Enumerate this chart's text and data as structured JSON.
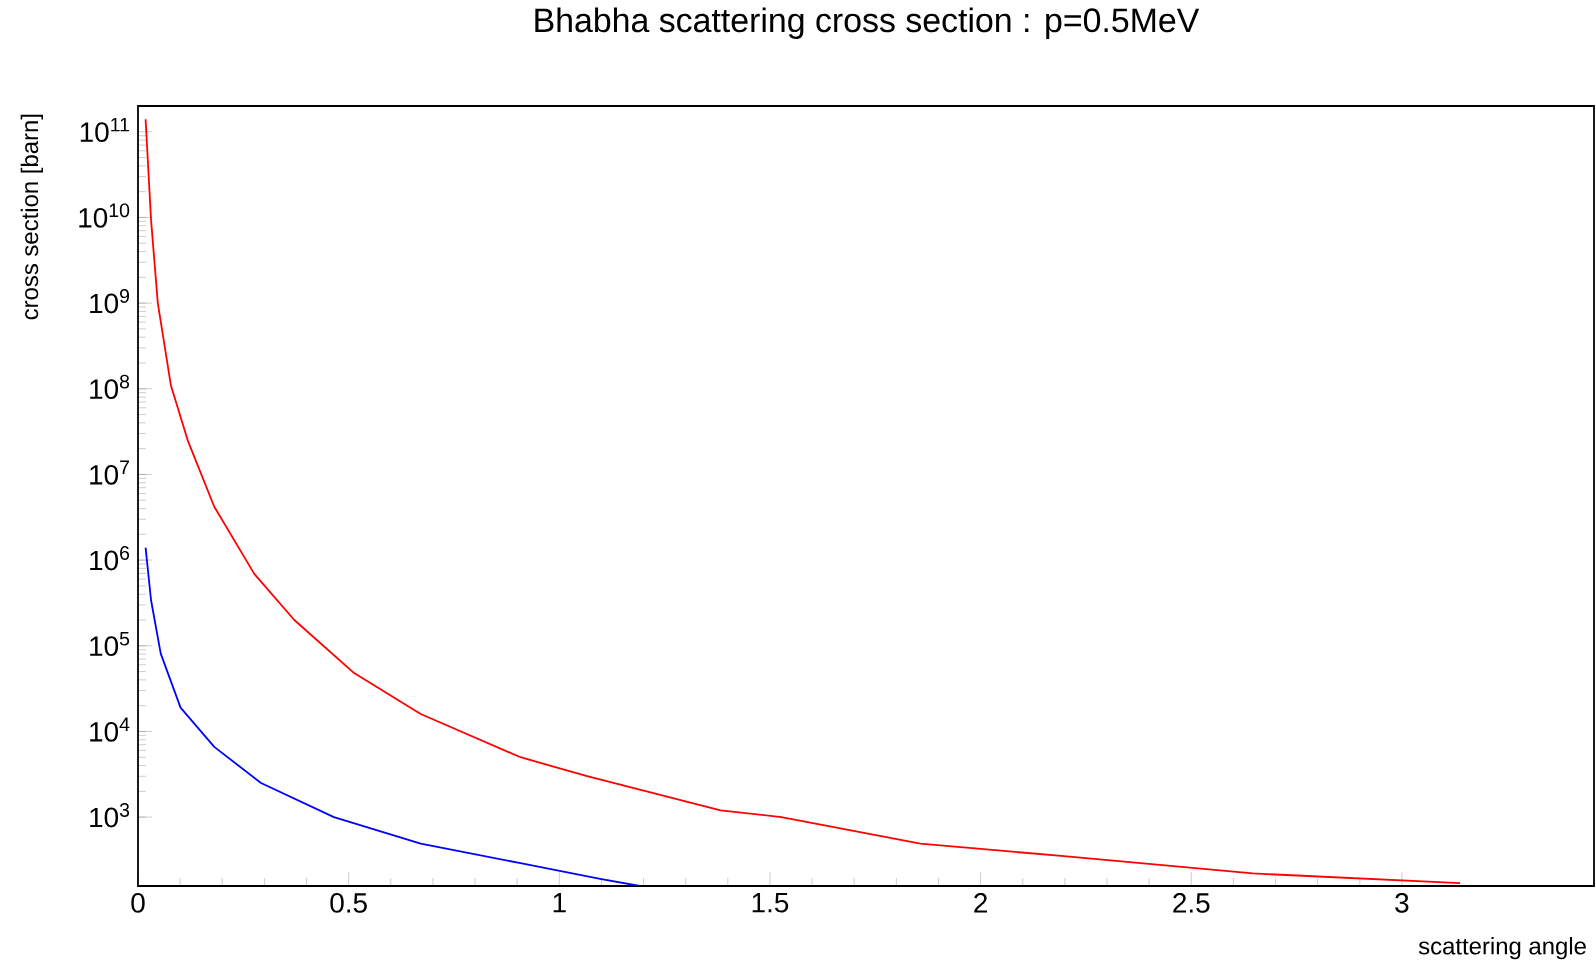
{
  "chart_data": {
    "type": "line",
    "title": "Bhabha scattering cross section : p=0.5MeV",
    "xlabel": "scattering angle",
    "ylabel": "cross section [barn]",
    "log": "y",
    "xlim": [
      0,
      3.456
    ],
    "ylim": [
      157,
      200000000000.0
    ],
    "xticks": [
      0,
      0.5,
      1,
      1.5,
      2,
      2.5,
      3
    ],
    "yticks": [
      {
        "value": 1000,
        "label": "10$^{3}$"
      },
      {
        "value": 10000,
        "label": "10$^{4}$"
      },
      {
        "value": 100000,
        "label": "10$^{5}$"
      },
      {
        "value": 1000000,
        "label": "10$^{6}$"
      },
      {
        "value": 10000000,
        "label": "10$^{7}$"
      },
      {
        "value": 100000000,
        "label": "10$^{8}$"
      },
      {
        "value": 1000000000,
        "label": "10$^{9}$"
      },
      {
        "value": 10000000000,
        "label": "10$^{10}$"
      },
      {
        "value": 100000000000,
        "label": "10$^{11}$"
      }
    ],
    "series": [
      {
        "color": "#ff0000",
        "x": [
          0.018,
          0.031,
          0.047,
          0.078,
          0.118,
          0.181,
          0.276,
          0.371,
          0.513,
          0.671,
          0.908,
          1.066,
          1.383,
          1.527,
          1.857,
          2.198,
          2.646,
          3.138
        ],
        "values": [
          140000000000.0,
          9300000000.0,
          1000000000.0,
          110000000.0,
          25000000.0,
          4200000.0,
          690000.0,
          200000.0,
          48000.0,
          16000.0,
          5000.0,
          3000.0,
          1200.0,
          1000.0,
          490,
          350,
          220,
          170
        ]
      },
      {
        "color": "#0000ff",
        "x": [
          0.018,
          0.031,
          0.054,
          0.101,
          0.181,
          0.292,
          0.465,
          0.671,
          0.908,
          1.097,
          1.191
        ],
        "values": [
          1400000.0,
          340000.0,
          81000.0,
          19000.0,
          6600.0,
          2500.0,
          1000.0,
          490,
          290,
          190,
          157
        ]
      }
    ]
  }
}
